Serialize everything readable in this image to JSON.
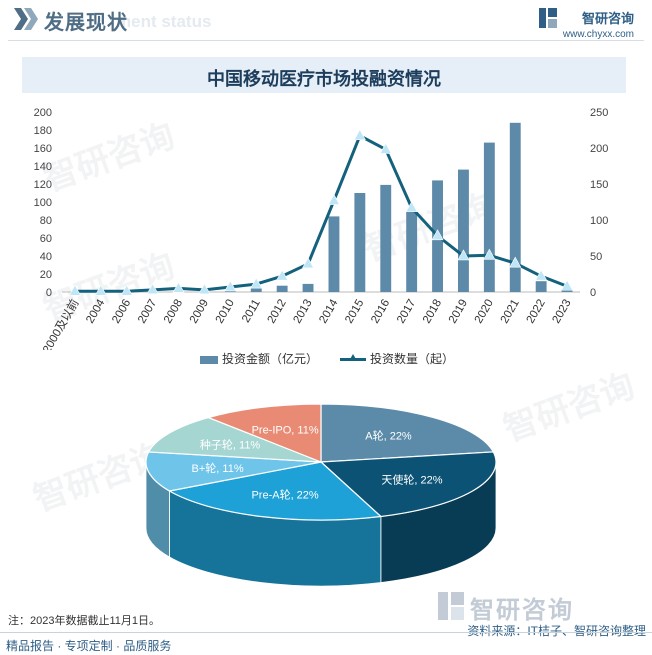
{
  "header": {
    "title": "发展现状",
    "subtitle_ghost": "ment status",
    "brand_name": "智研咨询",
    "brand_url": "www.chyxx.com"
  },
  "chart_title": "中国移动医疗市场投融资情况",
  "legend": {
    "bar": "投资金额（亿元）",
    "line": "投资数量（起）"
  },
  "chart_data": [
    {
      "type": "bar+line",
      "title": "中国移动医疗市场投融资情况",
      "categories": [
        "2000及以前",
        "2004",
        "2006",
        "2007",
        "2008",
        "2009",
        "2010",
        "2011",
        "2012",
        "2013",
        "2014",
        "2015",
        "2016",
        "2017",
        "2018",
        "2019",
        "2020",
        "2021",
        "2022",
        "2023"
      ],
      "series": [
        {
          "name": "投资金额（亿元）",
          "axis": "left",
          "kind": "bar",
          "values": [
            0,
            0,
            0,
            0,
            0,
            0,
            1,
            4,
            7,
            9,
            84,
            110,
            119,
            90,
            124,
            136,
            166,
            188,
            12,
            3
          ]
        },
        {
          "name": "投资数量（起）",
          "axis": "right",
          "kind": "line",
          "values": [
            1,
            1,
            1,
            3,
            5,
            3,
            7,
            11,
            22,
            39,
            127,
            217,
            198,
            117,
            78,
            50,
            51,
            40,
            22,
            8
          ]
        }
      ],
      "left_axis": {
        "min": 0,
        "max": 200,
        "step": 20,
        "ticks": [
          "0",
          "20",
          "40",
          "60",
          "80",
          "100",
          "120",
          "140",
          "160",
          "180",
          "200"
        ]
      },
      "right_axis": {
        "min": 0,
        "max": 250,
        "step": 50,
        "ticks": [
          "0",
          "50",
          "100",
          "150",
          "200",
          "250"
        ]
      },
      "legend_position": "bottom"
    },
    {
      "type": "pie",
      "labels": [
        "A轮, 22%",
        "天使轮, 22%",
        "Pre-A轮, 22%",
        "B+轮, 11%",
        "种子轮, 11%",
        "Pre-IPO, 11%"
      ],
      "categories": [
        "A轮",
        "天使轮",
        "Pre-A轮",
        "B+轮",
        "种子轮",
        "Pre-IPO"
      ],
      "values": [
        22,
        22,
        22,
        11,
        11,
        11
      ],
      "colors": [
        "#5b8ba8",
        "#0b5274",
        "#1ea1d7",
        "#6fc4ea",
        "#a6d6d2",
        "#e98b74"
      ]
    }
  ],
  "note": "注：2023年数据截止11月1日。",
  "footer": {
    "left": "精品报告 · 专项定制 · 品质服务",
    "right": "资料来源：IT桔子、智研咨询整理",
    "brand": "智研咨询"
  },
  "watermark": "智研咨询"
}
